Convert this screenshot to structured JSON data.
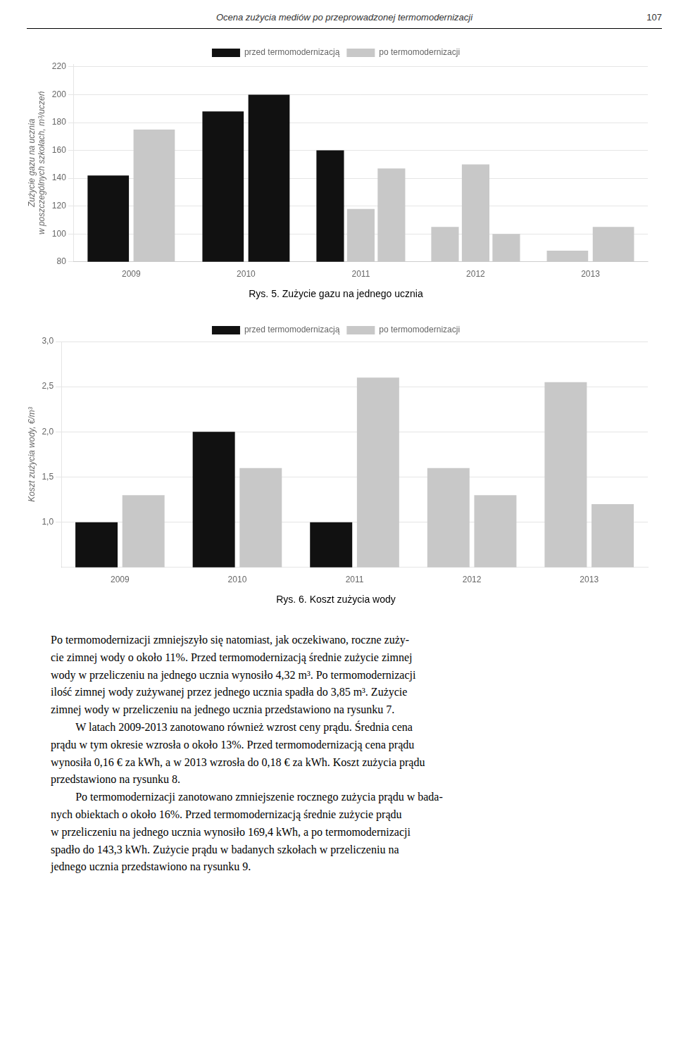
{
  "page_title": "Ocena zużycia mediów po przeprowadzonej termomodernizacji",
  "page_number": "107",
  "chart_data": [
    {
      "type": "bar",
      "title": "Rys. 5. Zużycie gazu na jednego ucznia",
      "ylabel": "Zużycie gazu na ucznia\nw poszczególnych szkołach, m³/uczeń",
      "categories": [
        "2009",
        "2010",
        "2011",
        "2012",
        "2013"
      ],
      "series": [
        {
          "name": "przed termomodernizacją",
          "color": "#111111",
          "values": [
            142,
            188,
            160,
            null,
            null
          ]
        },
        {
          "name": "przed termomodernizacją",
          "color": "#111111",
          "values": [
            null,
            200,
            null,
            null,
            null
          ]
        },
        {
          "name": "po termomodernizacji",
          "color": "#c8c8c8",
          "values": [
            175,
            null,
            118,
            105,
            88
          ]
        },
        {
          "name": "po termomodernizacji",
          "color": "#c8c8c8",
          "values": [
            null,
            null,
            147,
            150,
            105
          ]
        },
        {
          "name": "po termomodernizacji",
          "color": "#c8c8c8",
          "values": [
            null,
            null,
            null,
            100,
            null
          ]
        }
      ],
      "ylim": [
        80,
        222
      ],
      "yticks": [
        80,
        100,
        120,
        140,
        160,
        180,
        200,
        220
      ],
      "grid": "y",
      "legend": "top"
    },
    {
      "type": "bar",
      "title": "Rys. 6. Koszt zużycia wody",
      "ylabel": "Koszt zużycia wody, €/m³",
      "categories": [
        "2009",
        "2010",
        "2011",
        "2012",
        "2013"
      ],
      "series": [
        {
          "name": "przed termomodernizacją",
          "color": "#111111",
          "values": [
            1.0,
            2.0,
            1.0,
            null,
            null
          ]
        },
        {
          "name": "po termomodernizacji",
          "color": "#c8c8c8",
          "values": [
            1.3,
            1.6,
            2.6,
            1.6,
            2.55
          ]
        },
        {
          "name": "po termomodernizacji",
          "color": "#c8c8c8",
          "values": [
            null,
            null,
            null,
            1.3,
            1.2
          ]
        }
      ],
      "ylim": [
        0.5,
        3.0
      ],
      "yticks": [
        {
          "value": 1.0,
          "label": "1,0"
        },
        {
          "value": 1.5,
          "label": "1,5"
        },
        {
          "value": 2.0,
          "label": "2,0"
        },
        {
          "value": 2.5,
          "label": "2,5"
        },
        {
          "value": 3.0,
          "label": "3,0"
        }
      ],
      "grid": "y",
      "legend": "top"
    }
  ],
  "body": [
    [
      "Po termomodernizacji zmniejszyło się natomiast, jak oczekiwano, roczne zuży-",
      "cie zimnej wody o około 11%. Przed termomodernizacją średnie zużycie zimnej",
      "wody w przeliczeniu na jednego ucznia wynosiło 4,32 m³. Po termomodernizacji",
      "ilość zimnej wody zużywanej przez jednego ucznia spadła do 3,85 m³. Zużycie",
      "zimnej wody w przeliczeniu na jednego ucznia przedstawiono na rysunku 7."
    ],
    [
      "W latach 2009-2013 zanotowano również wzrost ceny prądu. Średnia cena",
      "prądu w tym okresie wzrosła o około 13%. Przed termomodernizacją cena prądu",
      "wynosiła 0,16 € za kWh, a w 2013 wzrosła do 0,18 € za kWh. Koszt zużycia prądu",
      "przedstawiono na rysunku 8."
    ],
    [
      "Po termomodernizacji zanotowano zmniejszenie rocznego zużycia prądu w bada-",
      "nych obiektach o około 16%. Przed termomodernizacją średnie zużycie prądu",
      "w przeliczeniu na jednego ucznia wynosiło 169,4 kWh, a po termomodernizacji",
      "spadło do 143,3 kWh. Zużycie prądu w badanych szkołach w przeliczeniu na",
      "jednego ucznia przedstawiono na rysunku 9."
    ]
  ]
}
